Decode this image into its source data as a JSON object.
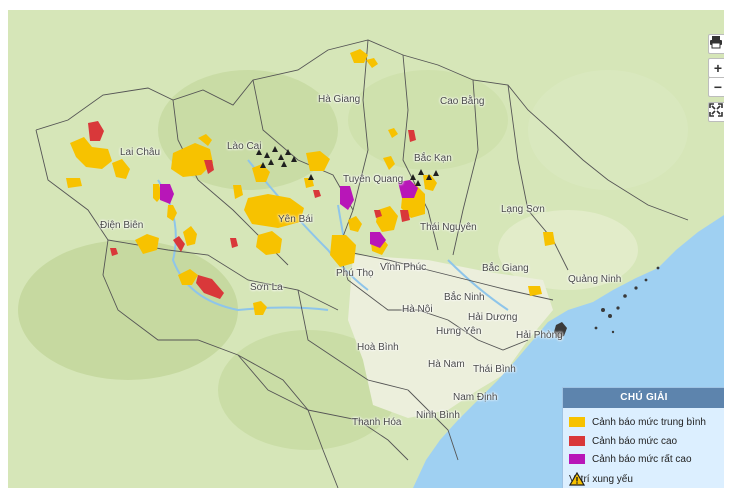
{
  "map": {
    "colors": {
      "land": "#d6e6b8",
      "sea": "#9fd0f2",
      "medium": "#f7c200",
      "high": "#d9383a",
      "very_high": "#b816b8",
      "vulnerable": "#1f1f1f"
    },
    "places": [
      "Hà Giang",
      "Cao Bằng",
      "Lai Châu",
      "Lào Cai",
      "Bắc Kạn",
      "Tuyên Quang",
      "Thái Nguyên",
      "Điện Biên",
      "Yên Bái",
      "Lạng Sơn",
      "Phú Thọ",
      "Vĩnh Phúc",
      "Bắc Giang",
      "Quảng Ninh",
      "Sơn La",
      "Bắc Ninh",
      "Hà Nội",
      "Hải Dương",
      "Hưng Yên",
      "Hải Phòng",
      "Hoà Bình",
      "Hà Nam",
      "Thái Bình",
      "Nam Định",
      "Ninh Bình",
      "Thanh Hóa"
    ]
  },
  "controls": {
    "print_icon": "printer-icon",
    "zoom_in": "+",
    "zoom_out": "−",
    "fullscreen_icon": "fullscreen-icon"
  },
  "legend": {
    "title": "CHÚ GIẢI",
    "items": [
      "Cảnh báo mức trung bình",
      "Cảnh báo mức cao",
      "Cảnh báo mức rất cao",
      "Vị trí xung yếu"
    ]
  }
}
